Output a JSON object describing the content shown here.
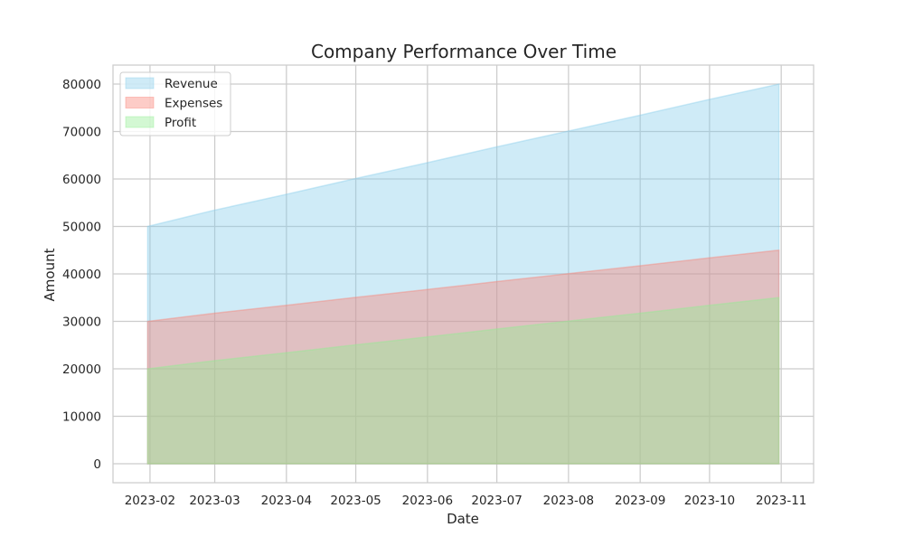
{
  "chart_data": {
    "type": "area",
    "title": "Company Performance Over Time",
    "xlabel": "Date",
    "ylabel": "Amount",
    "x": [
      "2023-01-31",
      "2023-02-28",
      "2023-03-31",
      "2023-04-30",
      "2023-05-31",
      "2023-06-30",
      "2023-07-31",
      "2023-08-31",
      "2023-09-30",
      "2023-10-31"
    ],
    "x_ticks": [
      "2023-02",
      "2023-03",
      "2023-04",
      "2023-05",
      "2023-06",
      "2023-07",
      "2023-08",
      "2023-09",
      "2023-10",
      "2023-11"
    ],
    "y_ticks": [
      0,
      10000,
      20000,
      30000,
      40000,
      50000,
      60000,
      70000,
      80000
    ],
    "ylim": [
      -4000,
      84000
    ],
    "xlim": [
      "2023-01-16",
      "2023-11-15"
    ],
    "grid": true,
    "legend_position": "upper-left",
    "series": [
      {
        "name": "Revenue",
        "color": "#87CEEB",
        "values": [
          50000,
          53333,
          56667,
          60000,
          63333,
          66667,
          70000,
          73333,
          76667,
          80000
        ]
      },
      {
        "name": "Expenses",
        "color": "#FA8072",
        "values": [
          30000,
          31667,
          33333,
          35000,
          36667,
          38333,
          40000,
          41667,
          43333,
          45000
        ]
      },
      {
        "name": "Profit",
        "color": "#90EE90",
        "values": [
          20000,
          21667,
          23333,
          25000,
          26667,
          28333,
          30000,
          31667,
          33333,
          35000
        ]
      }
    ]
  }
}
